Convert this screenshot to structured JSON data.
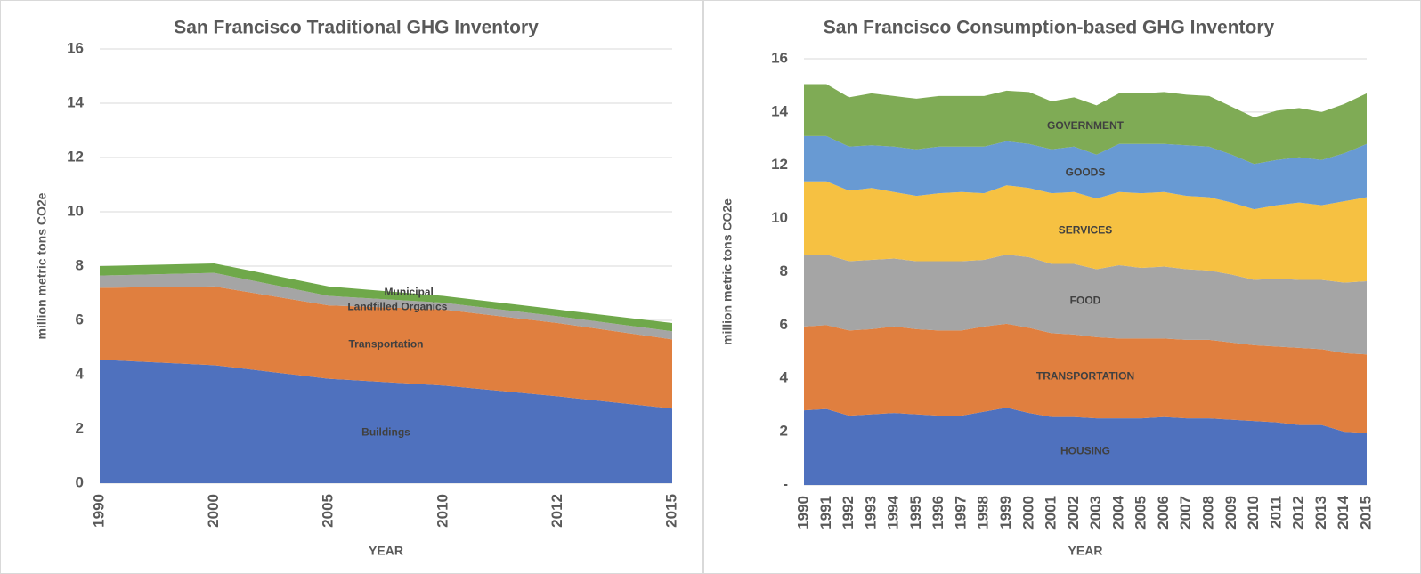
{
  "chart_data": [
    {
      "type": "area",
      "title": "San Francisco Traditional GHG Inventory",
      "xlabel": "YEAR",
      "ylabel": "million metric tons CO2e",
      "categories": [
        "1990",
        "2000",
        "2005",
        "2010",
        "2012",
        "2015"
      ],
      "ylim": [
        0,
        16
      ],
      "yticks": [
        0,
        2,
        4,
        6,
        8,
        10,
        12,
        14,
        16
      ],
      "grid": true,
      "series": [
        {
          "name": "Buildings",
          "color": "#4f71be",
          "values": [
            4.55,
            4.35,
            3.85,
            3.6,
            3.2,
            2.75
          ]
        },
        {
          "name": "Transportation",
          "color": "#e07f3f",
          "values": [
            2.65,
            2.9,
            2.7,
            2.8,
            2.7,
            2.55
          ]
        },
        {
          "name": "Landfilled Organics",
          "color": "#a5a5a5",
          "values": [
            0.45,
            0.5,
            0.35,
            0.25,
            0.25,
            0.3
          ]
        },
        {
          "name": "Municipal",
          "color": "#6fa84a",
          "values": [
            0.35,
            0.35,
            0.35,
            0.25,
            0.25,
            0.3
          ]
        }
      ]
    },
    {
      "type": "area",
      "title": "San Francisco Consumption-based GHG Inventory",
      "xlabel": "YEAR",
      "ylabel": "million metric tons CO2e",
      "categories": [
        "1990",
        "1991",
        "1992",
        "1993",
        "1994",
        "1995",
        "1996",
        "1997",
        "1998",
        "1999",
        "2000",
        "2001",
        "2002",
        "2003",
        "2004",
        "2005",
        "2006",
        "2007",
        "2008",
        "2009",
        "2010",
        "2011",
        "2012",
        "2013",
        "2014",
        "2015"
      ],
      "ylim": [
        0,
        16
      ],
      "yticks": [
        {
          "value": 0,
          "label": "-"
        },
        2,
        4,
        6,
        8,
        10,
        12,
        14,
        16
      ],
      "grid": true,
      "series": [
        {
          "name": "HOUSING",
          "color": "#4f71be",
          "values": [
            2.8,
            2.85,
            2.6,
            2.65,
            2.7,
            2.65,
            2.6,
            2.6,
            2.75,
            2.9,
            2.7,
            2.55,
            2.55,
            2.5,
            2.5,
            2.5,
            2.55,
            2.5,
            2.5,
            2.45,
            2.4,
            2.35,
            2.25,
            2.25,
            2.0,
            1.95
          ]
        },
        {
          "name": "TRANSPORTATION",
          "color": "#e07f3f",
          "values": [
            3.15,
            3.15,
            3.2,
            3.2,
            3.25,
            3.2,
            3.2,
            3.2,
            3.2,
            3.15,
            3.2,
            3.15,
            3.1,
            3.05,
            3.0,
            3.0,
            2.95,
            2.95,
            2.95,
            2.9,
            2.85,
            2.85,
            2.9,
            2.85,
            2.95,
            2.95
          ]
        },
        {
          "name": "FOOD",
          "color": "#a5a5a5",
          "values": [
            2.7,
            2.65,
            2.6,
            2.6,
            2.55,
            2.55,
            2.6,
            2.6,
            2.5,
            2.6,
            2.65,
            2.6,
            2.65,
            2.55,
            2.75,
            2.65,
            2.7,
            2.65,
            2.6,
            2.55,
            2.45,
            2.55,
            2.55,
            2.6,
            2.65,
            2.75
          ]
        },
        {
          "name": "SERVICES",
          "color": "#f6c142",
          "values": [
            2.75,
            2.75,
            2.65,
            2.7,
            2.5,
            2.45,
            2.55,
            2.6,
            2.5,
            2.6,
            2.6,
            2.65,
            2.7,
            2.65,
            2.75,
            2.8,
            2.8,
            2.75,
            2.75,
            2.7,
            2.65,
            2.75,
            2.9,
            2.8,
            3.05,
            3.15
          ]
        },
        {
          "name": "GOODS",
          "color": "#689ad3",
          "values": [
            1.7,
            1.7,
            1.65,
            1.6,
            1.7,
            1.75,
            1.75,
            1.7,
            1.75,
            1.65,
            1.65,
            1.65,
            1.7,
            1.65,
            1.8,
            1.85,
            1.8,
            1.9,
            1.9,
            1.8,
            1.7,
            1.7,
            1.7,
            1.7,
            1.8,
            2.0
          ]
        },
        {
          "name": "GOVERNMENT",
          "color": "#7fab55",
          "values": [
            1.95,
            1.95,
            1.85,
            1.95,
            1.9,
            1.9,
            1.9,
            1.9,
            1.9,
            1.9,
            1.95,
            1.8,
            1.85,
            1.85,
            1.9,
            1.9,
            1.95,
            1.9,
            1.9,
            1.8,
            1.75,
            1.85,
            1.85,
            1.8,
            1.85,
            1.9
          ]
        }
      ]
    }
  ]
}
